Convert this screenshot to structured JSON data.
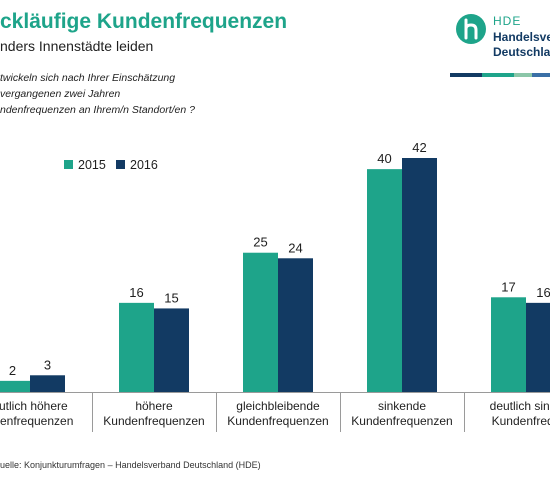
{
  "header": {
    "title": "ckläufige Kundenfrequenzen",
    "subtitle": "nders Innenstädte leiden",
    "question_lines": [
      "twickeln sich nach Ihrer Einschätzung",
      "vergangenen zwei Jahren",
      "ndenfrequenzen an Ihrem/n Standort/en ?"
    ]
  },
  "logo": {
    "abbr": "HDE",
    "name_line1": "Handelsve",
    "name_line2": "Deutschla"
  },
  "colors": {
    "series_2015": "#1ea48a",
    "series_2016": "#123a63",
    "title": "#1ea48a",
    "stripe": [
      "#123a63",
      "#1ea48a",
      "#8bc6a8",
      "#3a6fa6"
    ]
  },
  "chart_data": {
    "type": "bar",
    "categories": [
      [
        "eutlich höhere",
        "ndenfrequenzen"
      ],
      [
        "höhere",
        "Kundenfrequenzen"
      ],
      [
        "gleichbleibende",
        "Kundenfrequenzen"
      ],
      [
        "sinkende",
        "Kundenfrequenzen"
      ],
      [
        "deutlich sinke",
        "Kundenfrequ"
      ]
    ],
    "series": [
      {
        "name": "2015",
        "values": [
          2,
          16,
          25,
          40,
          17
        ],
        "labels": [
          "2",
          "16",
          "25",
          "40",
          "17"
        ]
      },
      {
        "name": "2016",
        "values": [
          3,
          15,
          24,
          42,
          16
        ],
        "labels": [
          "3",
          "15",
          "24",
          "42",
          "16"
        ]
      }
    ],
    "ylim": [
      0,
      42
    ],
    "grid": false,
    "legend_position": "top-left"
  },
  "source": "uelle: Konjunkturumfragen – Handelsverband Deutschland (HDE)"
}
